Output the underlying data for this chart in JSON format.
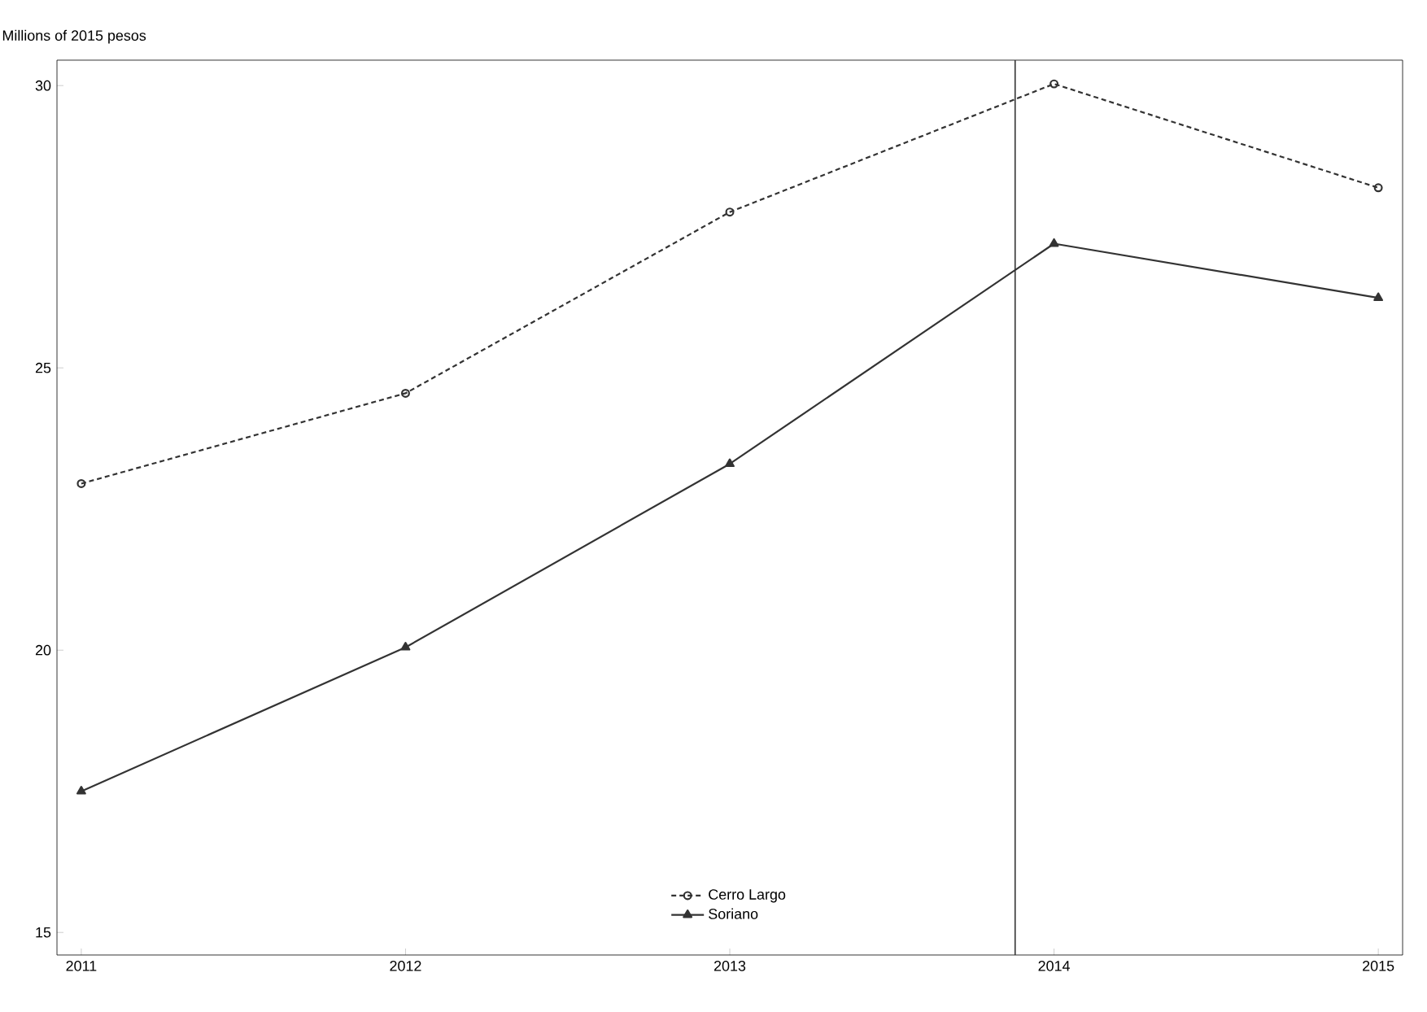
{
  "chart_data": {
    "type": "line",
    "ylabel": "Millions of 2015 pesos",
    "x": [
      2011,
      2012,
      2013,
      2014,
      2015
    ],
    "series": [
      {
        "name": "Cerro Largo",
        "color": "#333333",
        "values": [
          22.95,
          24.55,
          27.76,
          30.03,
          28.19
        ],
        "marker": "circle",
        "line_style": "dashed"
      },
      {
        "name": "Soriano",
        "color": "#333333",
        "values": [
          17.5,
          20.05,
          23.3,
          27.2,
          26.24
        ],
        "marker": "triangle",
        "line_style": "solid"
      }
    ],
    "xlim": [
      2010.925,
      2015.075
    ],
    "ylim": [
      14.6,
      30.45
    ],
    "xticks": [
      2011,
      2012,
      2013,
      2014,
      2015
    ],
    "yticks": [
      15,
      20,
      25,
      30
    ],
    "ref_lines": [
      {
        "axis": "x",
        "value": 2013.88,
        "color": "#333333"
      }
    ],
    "grid": false,
    "legend": "bottom"
  }
}
